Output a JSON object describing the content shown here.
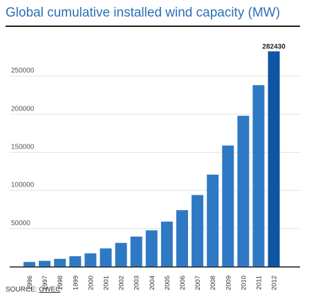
{
  "title": "Global cumulative installed wind capacity (MW)",
  "source": {
    "label": "SOURCE:",
    "link_text": "GWEC"
  },
  "colors": {
    "bar": "#2f79c4",
    "bar_last": "#0e56a3",
    "grid": "#e2e2e2",
    "title": "#2a6fb8"
  },
  "chart_data": {
    "type": "bar",
    "title": "Global cumulative installed wind capacity (MW)",
    "xlabel": "",
    "ylabel": "",
    "categories": [
      "1996",
      "1997",
      "1998",
      "1999",
      "2000",
      "2001",
      "2002",
      "2003",
      "2004",
      "2005",
      "2006",
      "2007",
      "2008",
      "2009",
      "2010",
      "2011",
      "2012"
    ],
    "values": [
      6100,
      7600,
      10200,
      13600,
      17400,
      23900,
      31100,
      39400,
      47600,
      59100,
      74100,
      93900,
      120700,
      158900,
      197900,
      238100,
      282430
    ],
    "highlight": {
      "index": 16,
      "label": "282430"
    },
    "yticks": [
      50000,
      100000,
      150000,
      200000,
      250000
    ],
    "ylim": [
      0,
      290000
    ],
    "grid": true
  }
}
